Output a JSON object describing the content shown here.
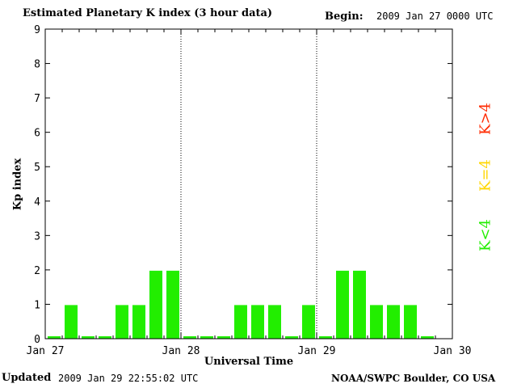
{
  "header": {
    "title": "Estimated Planetary K index (3 hour data)",
    "begin_label": "Begin:",
    "begin_value": "2009 Jan 27 0000 UTC"
  },
  "footer": {
    "updated_label": "Updated",
    "updated_value": "2009 Jan 29 22:55:02 UTC",
    "credit": "NOAA/SWPC Boulder, CO USA"
  },
  "legend": [
    {
      "label": "K>4",
      "color": "#ff2a00"
    },
    {
      "label": "K=4",
      "color": "#ffd700"
    },
    {
      "label": "K<4",
      "color": "#22ee00"
    }
  ],
  "chart_data": {
    "type": "bar",
    "title": "Estimated Planetary K index (3 hour data)",
    "xlabel": "Universal Time",
    "ylabel": "Kp index",
    "ylim": [
      0,
      9
    ],
    "yticks": [
      0,
      1,
      2,
      3,
      4,
      5,
      6,
      7,
      8,
      9
    ],
    "xticks": [
      "Jan 27",
      "Jan 28",
      "Jan 29",
      "Jan 30"
    ],
    "x_range": [
      "2009 Jan 27 00:00",
      "2009 Jan 30 00:00"
    ],
    "interval_hours": 3,
    "day_separators": [
      "Jan 28",
      "Jan 29"
    ],
    "grid": false,
    "bar_color": "#22ee00",
    "values": [
      0,
      1,
      0,
      0,
      1,
      1,
      2,
      2,
      0,
      0,
      0,
      1,
      1,
      1,
      0,
      1,
      0,
      2,
      2,
      1,
      1,
      1,
      0
    ]
  }
}
